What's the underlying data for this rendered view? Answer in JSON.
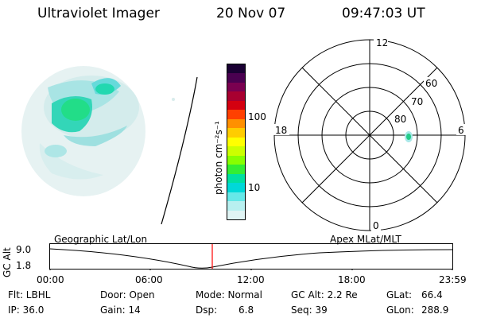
{
  "header": {
    "instrument": "Ultraviolet Imager",
    "date": "20 Nov 07",
    "time": "09:47:03 UT"
  },
  "colorbar": {
    "label": "photon cm⁻²s⁻¹",
    "ticks": [
      "100",
      "10"
    ],
    "colors": [
      "#1a0033",
      "#4a0050",
      "#7a0050",
      "#a80030",
      "#d40010",
      "#ff4000",
      "#ff9000",
      "#ffcc00",
      "#ffff00",
      "#ccff00",
      "#88ff00",
      "#33ee33",
      "#00e0a0",
      "#00d8d8",
      "#66e8e8",
      "#b8f0f0",
      "#e0f4f4"
    ]
  },
  "polar_plot": {
    "mlt_labels": {
      "top": "12",
      "left": "18",
      "right": "6",
      "bottom": "0"
    },
    "lat_labels": [
      "60",
      "70",
      "80"
    ]
  },
  "timeline": {
    "y_label": "GC Alt",
    "y_ticks": [
      "9.0",
      "1.8"
    ],
    "left_title": "Geographic Lat/Lon",
    "right_title": "Apex  MLat/MLT",
    "x_ticks": [
      "00:00",
      "06:00",
      "12:00",
      "18:00",
      "23:59"
    ]
  },
  "status": {
    "flt": "Flt: LBHL",
    "ip": "IP: 36.0",
    "door": "Door: Open",
    "gain": "Gain: 14",
    "mode": "Mode: Normal",
    "dsp_label": "Dsp:",
    "dsp_value": "6.8",
    "gc_alt": "GC Alt: 2.2 Re",
    "seq": "Seq: 39",
    "glat_label": "GLat:",
    "glat_value": "66.4",
    "glon_label": "GLon:",
    "glon_value": "288.9"
  }
}
